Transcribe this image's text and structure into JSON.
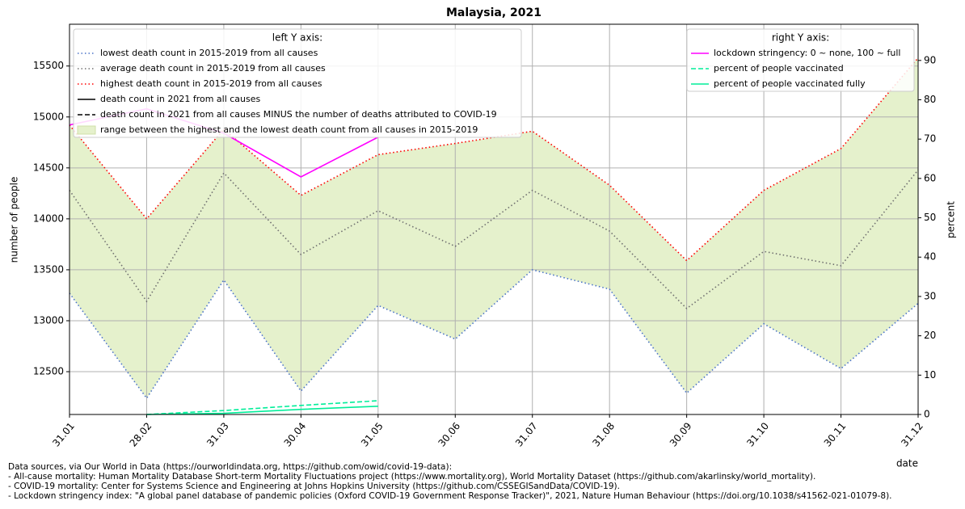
{
  "chart_data": {
    "type": "line",
    "title": "Malaysia, 2021",
    "ylabel": "number of people",
    "y2label": "percent",
    "xlabel": "date",
    "categories": [
      "31.01",
      "28.02",
      "31.03",
      "30.04",
      "31.05",
      "30.06",
      "31.07",
      "31.08",
      "30.09",
      "31.10",
      "30.11",
      "31.12"
    ],
    "ylim": [
      12080,
      15910
    ],
    "yticks": [
      12500,
      13000,
      13500,
      14000,
      14500,
      15000,
      15500
    ],
    "y2lim": [
      0,
      99.2
    ],
    "y2ticks": [
      0,
      10,
      20,
      30,
      40,
      50,
      60,
      70,
      80,
      90
    ],
    "grid": true,
    "left_legend_title": "left Y axis:",
    "right_legend_title": "right Y axis:",
    "series": [
      {
        "name": "lowest death count in 2015-2019 from all causes",
        "color": "#4a73c8",
        "linestyle": "dotted",
        "values": [
          13270,
          12240,
          13400,
          12310,
          13150,
          12820,
          13500,
          13310,
          12290,
          12970,
          12530,
          13170
        ]
      },
      {
        "name": "average death count in 2015-2019 from all causes",
        "color": "#707070",
        "linestyle": "dotted",
        "values": [
          14280,
          13190,
          14450,
          13650,
          14080,
          13730,
          14280,
          13880,
          13120,
          13680,
          13540,
          14480
        ]
      },
      {
        "name": "highest death count in 2015-2019 from all causes",
        "color": "#ff0000",
        "linestyle": "dotted",
        "values": [
          14920,
          14000,
          14880,
          14230,
          14630,
          14740,
          14860,
          14330,
          13590,
          14280,
          14690,
          15580
        ]
      },
      {
        "name": "death count in 2021 from all causes",
        "color": "#000000",
        "linestyle": "solid",
        "values": [
          null,
          null,
          null,
          null,
          null,
          null,
          null,
          null,
          null,
          null,
          null,
          null
        ]
      },
      {
        "name": "death count in 2021 from all causes MINUS the number of deaths attributed to COVID-19",
        "color": "#000000",
        "linestyle": "dashed",
        "values": [
          null,
          null,
          null,
          null,
          null,
          null,
          null,
          null,
          null,
          null,
          null,
          null
        ]
      },
      {
        "name": "lockdown stringency: 0 ~ none, 100 ~ full",
        "color": "#ff00ff",
        "linestyle": "solid",
        "axis": "y2",
        "values": [
          73.6,
          77.7,
          71.5,
          60.4,
          70.5,
          null,
          null,
          null,
          null,
          null,
          null,
          null
        ]
      },
      {
        "name": "percent of people vaccinated",
        "color": "#00ee99",
        "linestyle": "dashed",
        "axis": "y2",
        "values": [
          null,
          0,
          1,
          2.3,
          3.5,
          null,
          null,
          null,
          null,
          null,
          null,
          null
        ]
      },
      {
        "name": "percent of people vaccinated fully",
        "color": "#00ee99",
        "linestyle": "solid",
        "axis": "y2",
        "values": [
          null,
          0,
          0.3,
          1.3,
          2.1,
          null,
          null,
          null,
          null,
          null,
          null,
          null
        ]
      }
    ],
    "range_fill": {
      "name": "range between the highest and the lowest death count from all causes in 2015-2019",
      "color": "#e5f1cc"
    },
    "footnotes": [
      "Data sources, via Our World in Data (https://ourworldindata.org, https://github.com/owid/covid-19-data):",
      "- All-cause mortality: Human Mortality Database Short-term Mortality Fluctuations project (https://www.mortality.org), World Mortality Dataset (https://github.com/akarlinsky/world_mortality).",
      "- COVID-19 mortality: Center for Systems Science and Engineering at Johns Hopkins University (https://github.com/CSSEGISandData/COVID-19).",
      "- Lockdown stringency index: \"A global panel database of pandemic policies (Oxford COVID-19 Government Response Tracker)\", 2021, Nature Human Behaviour (https://doi.org/10.1038/s41562-021-01079-8)."
    ]
  }
}
